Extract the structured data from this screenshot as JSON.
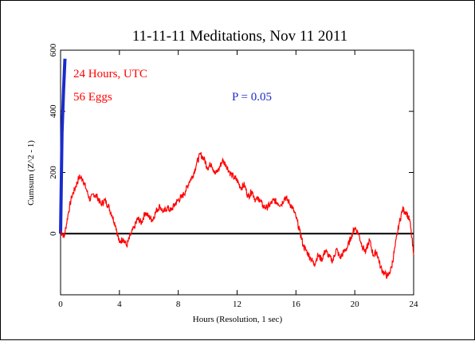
{
  "chart_data": {
    "type": "line",
    "title": "11-11-11 Meditations, Nov 11 2011",
    "xlabel": "Hours (Resolution, 1 sec)",
    "ylabel": "Cumsum (Z^2 - 1)",
    "xlim": [
      0,
      24
    ],
    "ylim": [
      -200,
      600
    ],
    "x_ticks": [
      "0",
      "4",
      "8",
      "12",
      "16",
      "20",
      "24"
    ],
    "y_ticks": [
      "0",
      "200",
      "400",
      "600"
    ],
    "annotations": {
      "duration": "24 Hours, UTC",
      "eggs": "56 Eggs",
      "probability": "P = 0.05"
    },
    "colors": {
      "cumsum": "#ff0000",
      "probability_envelope": "#1a2bcc",
      "zero_line": "#000000",
      "annotation_red": "#ff0000",
      "annotation_blue": "#1a2bcc"
    },
    "envelope_p": 0.05,
    "series": [
      {
        "role": "cumsum",
        "x": [
          0,
          0.25,
          0.5,
          0.75,
          1.0,
          1.25,
          1.5,
          1.75,
          2.0,
          2.25,
          2.5,
          2.75,
          3.0,
          3.25,
          3.5,
          3.75,
          4.0,
          4.25,
          4.5,
          4.75,
          5.0,
          5.25,
          5.5,
          5.75,
          6.0,
          6.25,
          6.5,
          6.75,
          7.0,
          7.25,
          7.5,
          7.75,
          8.0,
          8.25,
          8.5,
          8.75,
          9.0,
          9.25,
          9.5,
          9.75,
          10.0,
          10.25,
          10.5,
          10.75,
          11.0,
          11.25,
          11.5,
          11.75,
          12.0,
          12.25,
          12.5,
          12.75,
          13.0,
          13.25,
          13.5,
          13.75,
          14.0,
          14.25,
          14.5,
          14.75,
          15.0,
          15.25,
          15.5,
          15.75,
          16.0,
          16.25,
          16.5,
          16.75,
          17.0,
          17.25,
          17.5,
          17.75,
          18.0,
          18.25,
          18.5,
          18.75,
          19.0,
          19.25,
          19.5,
          19.75,
          20.0,
          20.25,
          20.5,
          20.75,
          21.0,
          21.25,
          21.5,
          21.75,
          22.0,
          22.25,
          22.5,
          22.75,
          23.0,
          23.25,
          23.5,
          23.75,
          24.0
        ],
        "y": [
          10,
          -10,
          60,
          120,
          150,
          185,
          180,
          145,
          110,
          130,
          120,
          95,
          110,
          90,
          60,
          25,
          -30,
          -15,
          -40,
          -5,
          20,
          50,
          35,
          70,
          55,
          45,
          75,
          90,
          70,
          85,
          75,
          95,
          110,
          120,
          140,
          170,
          190,
          230,
          260,
          245,
          215,
          230,
          195,
          210,
          240,
          225,
          200,
          185,
          175,
          150,
          160,
          120,
          140,
          110,
          115,
          90,
          85,
          95,
          110,
          100,
          95,
          120,
          105,
          85,
          55,
          10,
          -40,
          -60,
          -80,
          -100,
          -70,
          -85,
          -55,
          -75,
          -90,
          -50,
          -80,
          -60,
          -45,
          -10,
          20,
          0,
          -40,
          -60,
          -20,
          -70,
          -60,
          -110,
          -130,
          -140,
          -110,
          -40,
          30,
          80,
          70,
          40,
          -70
        ]
      }
    ]
  }
}
